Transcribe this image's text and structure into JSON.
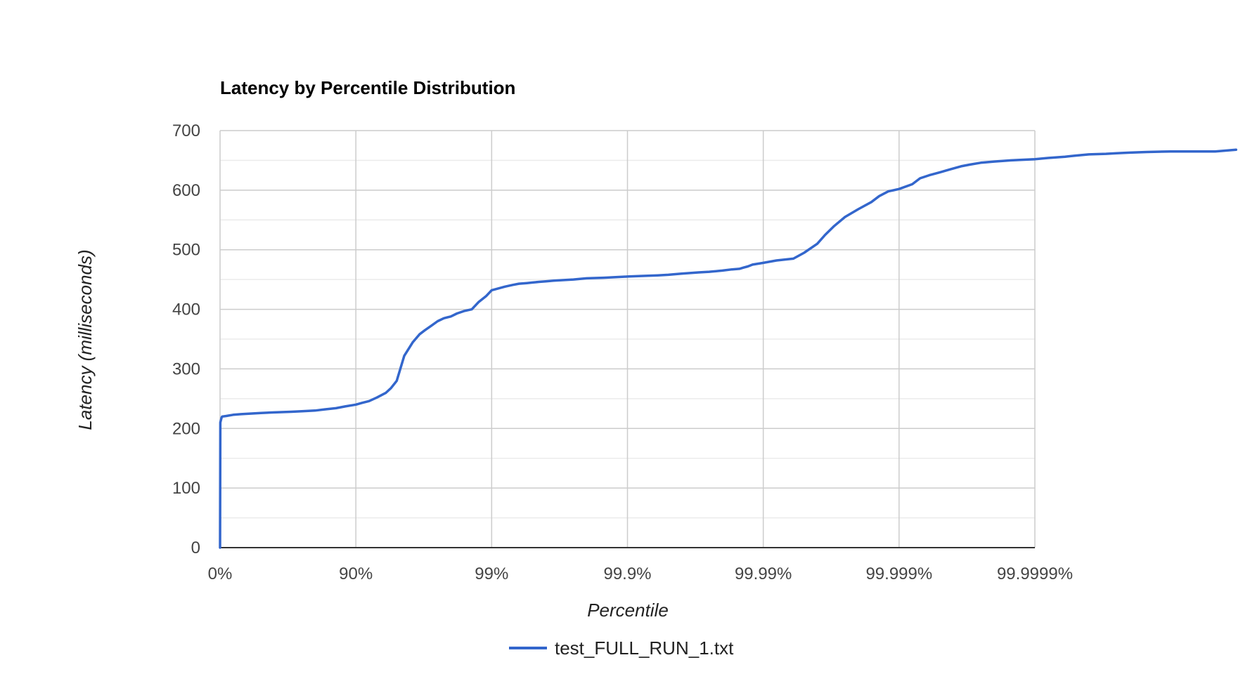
{
  "chart_data": {
    "type": "line",
    "title": "Latency by Percentile Distribution",
    "xlabel": "Percentile",
    "ylabel": "Latency (milliseconds)",
    "x_scale": "log_inverse_percentile",
    "x_ticks": [
      "0%",
      "90%",
      "99%",
      "99.9%",
      "99.99%",
      "99.999%",
      "99.9999%"
    ],
    "x_tick_values": [
      0,
      90,
      99,
      99.9,
      99.99,
      99.999,
      99.9999
    ],
    "y_ticks": [
      "0",
      "100",
      "200",
      "300",
      "400",
      "500",
      "600",
      "700"
    ],
    "ylim": [
      0,
      700
    ],
    "y_major_step": 100,
    "y_minor_step": 50,
    "grid": true,
    "legend_position": "bottom",
    "colors": {
      "line": "#3366cc",
      "grid_major": "#cccccc",
      "grid_minor": "#ebebeb",
      "baseline": "#333333"
    },
    "series": [
      {
        "name": "test_FULL_RUN_1.txt",
        "x": [
          0,
          0.5,
          2.5,
          3.5,
          10,
          20,
          30,
          40,
          50,
          60,
          70,
          75,
          80,
          83,
          86,
          88,
          90,
          91,
          92,
          93,
          94,
          94.5,
          95,
          95.6,
          96.2,
          96.6,
          96.9,
          97.2,
          97.5,
          97.75,
          98.0,
          98.2,
          98.4,
          98.6,
          98.75,
          98.9,
          99,
          99.2,
          99.3,
          99.37,
          99.45,
          99.5,
          99.55,
          99.6,
          99.65,
          99.7,
          99.75,
          99.8,
          99.85,
          99.9,
          99.92,
          99.94,
          99.95,
          99.96,
          99.97,
          99.975,
          99.98,
          99.983,
          99.985,
          99.986,
          99.987,
          99.988,
          99.99,
          99.992,
          99.994,
          99.995,
          99.996,
          99.9965,
          99.997,
          99.9975,
          99.998,
          99.9984,
          99.9986,
          99.9988,
          99.999,
          99.9992,
          99.9993,
          99.9994,
          99.9995,
          99.99958,
          99.99965,
          99.9997,
          99.99975,
          99.9998,
          99.99985,
          99.9999,
          99.99992,
          99.99994,
          99.99995,
          99.99996,
          99.99997,
          99.999975,
          99.99998,
          99.999985,
          99.99999,
          99.999992,
          99.999995,
          99.9999953,
          99.9999967
        ],
        "values": [
          0,
          210,
          218,
          220,
          221,
          223,
          224,
          225,
          226,
          227,
          228,
          229,
          230,
          232,
          234,
          237,
          240,
          243,
          246,
          252,
          260,
          268,
          280,
          322,
          345,
          358,
          365,
          372,
          380,
          385,
          388,
          393,
          397,
          400,
          412,
          422,
          432,
          438,
          441,
          443,
          444,
          445,
          446,
          447,
          448,
          449,
          450,
          452,
          453,
          455,
          456,
          457,
          458,
          460,
          462,
          463,
          465,
          467,
          468,
          470,
          472,
          475,
          478,
          482,
          485,
          495,
          510,
          525,
          540,
          555,
          568,
          580,
          590,
          598,
          602,
          610,
          620,
          625,
          630,
          635,
          640,
          643,
          646,
          648,
          650,
          652,
          654,
          656,
          658,
          660,
          661,
          662,
          663,
          664,
          665,
          665,
          665,
          665,
          668
        ]
      }
    ]
  }
}
